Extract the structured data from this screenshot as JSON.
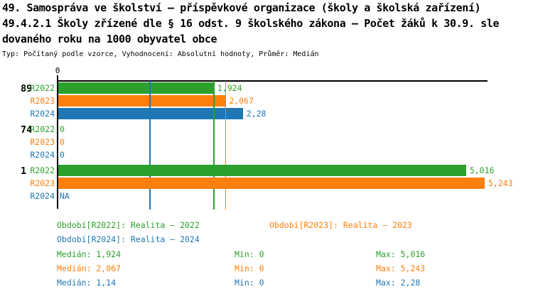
{
  "title": {
    "line1": "49. Samospráva ve školství – příspěvkové organizace (školy a školská zařízení)",
    "line2": "49.4.2.1 Školy zřízené dle § 16 odst. 9 školského zákona – Počet žáků k 30.9. sle",
    "line3": "dovaného roku na 1000 obyvatel obce",
    "meta": "Typ: Počítaný podle vzorce, Vyhodnocení: Absolutní hodnoty, Průměr: Medián"
  },
  "colors": {
    "r2022": "#2ca02c",
    "r2023": "#ff7f0e",
    "r2024": "#1f77b4",
    "axis": "#000000"
  },
  "chart_data": {
    "type": "bar",
    "orientation": "horizontal",
    "x_tick_label": "0",
    "xlim": [
      0,
      5.27
    ],
    "series_names": [
      "R2022",
      "R2023",
      "R2024"
    ],
    "groups": [
      {
        "label": "89",
        "rows": [
          {
            "series": "R2022",
            "value": 1.924,
            "value_label": "1,924"
          },
          {
            "series": "R2023",
            "value": 2.067,
            "value_label": "2,067"
          },
          {
            "series": "R2024",
            "value": 2.28,
            "value_label": "2,28"
          }
        ]
      },
      {
        "label": "74",
        "rows": [
          {
            "series": "R2022",
            "value": 0,
            "value_label": "0"
          },
          {
            "series": "R2023",
            "value": 0,
            "value_label": "0"
          },
          {
            "series": "R2024",
            "value": 0,
            "value_label": "0"
          }
        ]
      },
      {
        "label": "1",
        "rows": [
          {
            "series": "R2022",
            "value": 5.016,
            "value_label": "5,016"
          },
          {
            "series": "R2023",
            "value": 5.243,
            "value_label": "5,243"
          },
          {
            "series": "R2024",
            "value": null,
            "value_label": "NA"
          }
        ]
      }
    ],
    "median_lines": [
      {
        "series": "R2022",
        "value": 1.924
      },
      {
        "series": "R2023",
        "value": 2.067
      },
      {
        "series": "R2024",
        "value": 1.14
      }
    ]
  },
  "legend": {
    "periods": [
      {
        "label": "Období[R2022]: Realita – 2022"
      },
      {
        "label": "Období[R2023]: Realita – 2023"
      },
      {
        "label": "Období[R2024]: Realita – 2024"
      }
    ],
    "stats": [
      {
        "median": "Medián: 1,924",
        "min": "Min: 0",
        "max": "Max: 5,016"
      },
      {
        "median": "Medián: 2,067",
        "min": "Min: 0",
        "max": "Max: 5,243"
      },
      {
        "median": "Medián: 1,14",
        "min": "Min: 0",
        "max": "Max: 2,28"
      }
    ]
  }
}
